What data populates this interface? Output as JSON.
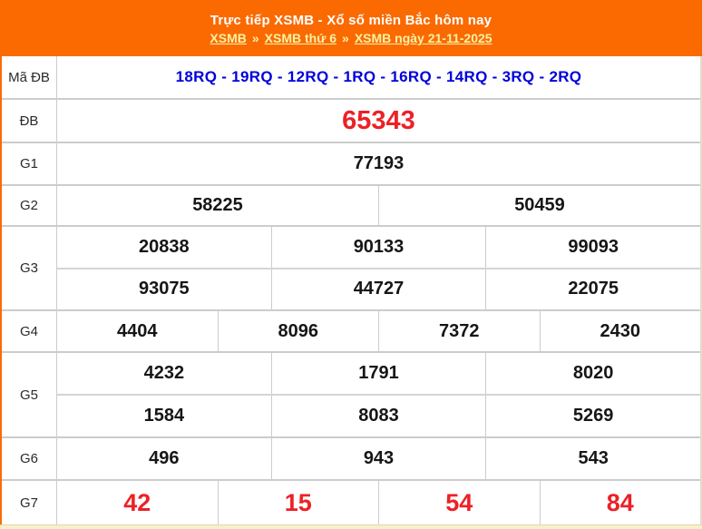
{
  "header": {
    "title": "Trực tiếp XSMB - Xổ số miền Bắc hôm nay",
    "breadcrumb_separator": "»",
    "breadcrumb": [
      "XSMB",
      "XSMB thứ 6",
      "XSMB ngày 21-11-2025"
    ]
  },
  "table": {
    "rows": {
      "ma_db": {
        "label": "Mã ĐB",
        "value": "18RQ - 19RQ - 12RQ - 1RQ - 16RQ - 14RQ - 3RQ - 2RQ"
      },
      "db": {
        "label": "ĐB",
        "value": "65343"
      },
      "g1": {
        "label": "G1",
        "value": "77193"
      },
      "g2": {
        "label": "G2",
        "values": [
          "58225",
          "50459"
        ]
      },
      "g3": {
        "label": "G3",
        "row1": [
          "20838",
          "90133",
          "99093"
        ],
        "row2": [
          "93075",
          "44727",
          "22075"
        ]
      },
      "g4": {
        "label": "G4",
        "values": [
          "4404",
          "8096",
          "7372",
          "2430"
        ]
      },
      "g5": {
        "label": "G5",
        "row1": [
          "4232",
          "1791",
          "8020"
        ],
        "row2": [
          "1584",
          "8083",
          "5269"
        ]
      },
      "g6": {
        "label": "G6",
        "values": [
          "496",
          "943",
          "543"
        ]
      },
      "g7": {
        "label": "G7",
        "values": [
          "42",
          "15",
          "54",
          "84"
        ]
      }
    }
  },
  "colors": {
    "header_background": "#FB6A01",
    "header_title": "#FFFFFF",
    "breadcrumb_link": "#FAF2A3",
    "code_value": "#0000DB",
    "special_value": "#EC2127",
    "normal_value": "#161616",
    "border": "#CCCCCC",
    "bottom_strip": "#F8F0CB"
  }
}
